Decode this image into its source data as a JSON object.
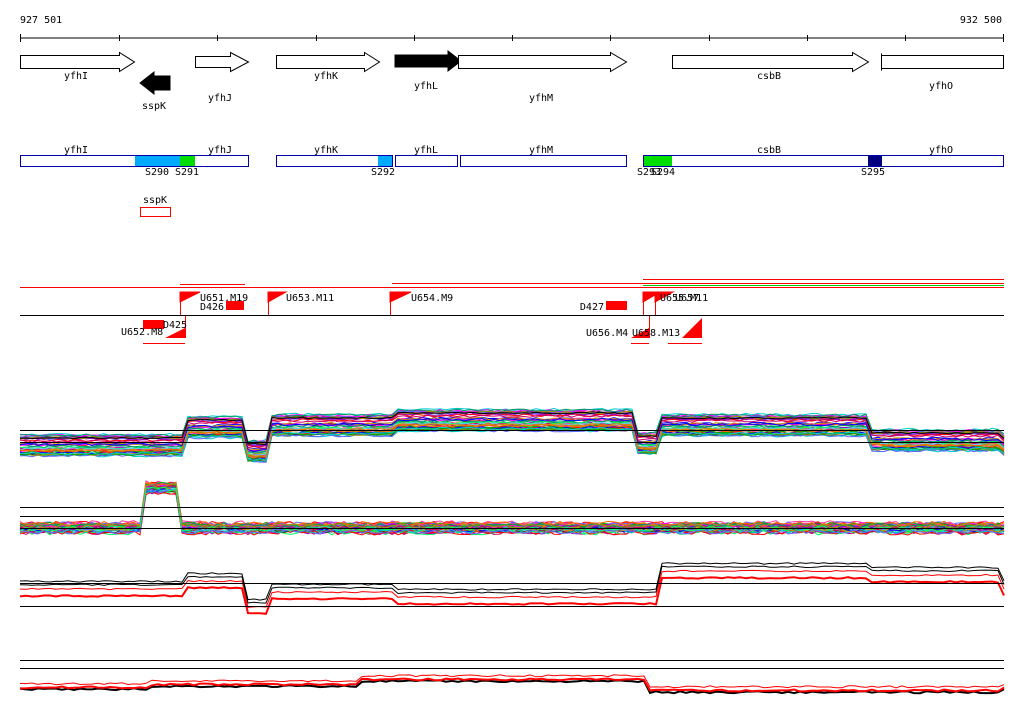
{
  "coords": {
    "start": "927 501",
    "end": "932 500"
  },
  "genes": [
    {
      "label": "yfhI",
      "strand": "+",
      "fill": "white"
    },
    {
      "label": "sspK",
      "strand": "-",
      "fill": "black"
    },
    {
      "label": "yfhJ",
      "strand": "+",
      "fill": "white"
    },
    {
      "label": "yfhK",
      "strand": "+",
      "fill": "white"
    },
    {
      "label": "yfhL",
      "strand": "+",
      "fill": "black"
    },
    {
      "label": "yfhM",
      "strand": "+",
      "fill": "white"
    },
    {
      "label": "csbB",
      "strand": "+",
      "fill": "white"
    },
    {
      "label": "yfhO",
      "strand": "+",
      "fill": "white"
    }
  ],
  "tiles": [
    {
      "label": "yfhI"
    },
    {
      "label": "yfhJ"
    },
    {
      "label": "yfhK"
    },
    {
      "label": "yfhL"
    },
    {
      "label": "yfhM"
    },
    {
      "label": "csbB"
    },
    {
      "label": "yfhO"
    }
  ],
  "tile_minor": {
    "label": "sspK"
  },
  "segments": [
    {
      "label": "S290",
      "color": "#00aaff"
    },
    {
      "label": "S291",
      "color": "#00dd00"
    },
    {
      "label": "S292",
      "color": "#00aaff"
    },
    {
      "label": "S293",
      "color": "#00dd00"
    },
    {
      "label": "S294",
      "color": "#00dd00"
    },
    {
      "label": "S295",
      "color": "#000080"
    }
  ],
  "features": [
    {
      "label": "U651.M19"
    },
    {
      "label": "D426"
    },
    {
      "label": "U653.M11"
    },
    {
      "label": "U654.M9"
    },
    {
      "label": "D427"
    },
    {
      "label": "U655.M11"
    },
    {
      "label": "U657"
    },
    {
      "label": "U652.M8"
    },
    {
      "label": "D425"
    },
    {
      "label": "U656.M4"
    },
    {
      "label": "U658.M13"
    }
  ],
  "colors": {
    "gene_outline": "#000000",
    "tile_outline": "#0000aa",
    "feature": "#ff0000"
  }
}
